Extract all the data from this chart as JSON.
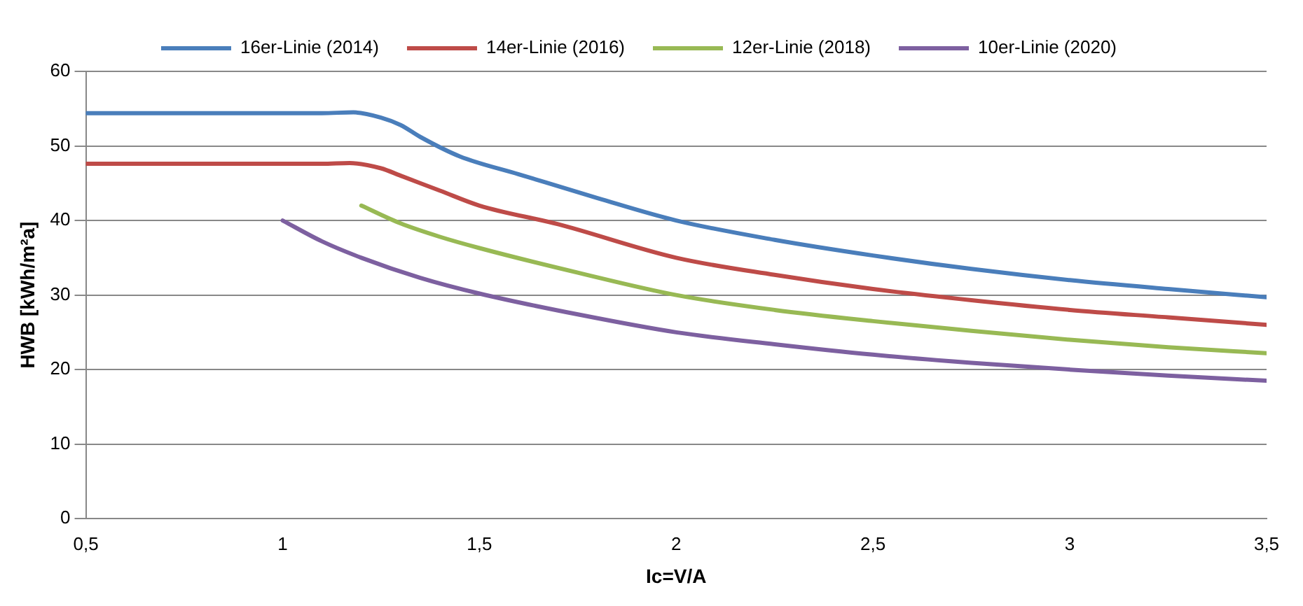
{
  "chart_data": {
    "type": "line",
    "xlabel": "Ic=V/A",
    "ylabel": "HWB [kWh/m²a]",
    "xlim": [
      0.5,
      3.5
    ],
    "xticks": [
      {
        "value": 0.5,
        "label": "0,5"
      },
      {
        "value": 1,
        "label": "1"
      },
      {
        "value": 1.5,
        "label": "1,5"
      },
      {
        "value": 2,
        "label": "2"
      },
      {
        "value": 2.5,
        "label": "2,5"
      },
      {
        "value": 3,
        "label": "3"
      },
      {
        "value": 3.5,
        "label": "3,5"
      }
    ],
    "ylim": [
      0,
      60
    ],
    "yticks": [
      0,
      10,
      20,
      30,
      40,
      50,
      60
    ],
    "grid": "y",
    "legend": "top",
    "marker": "none",
    "line_style": "solid",
    "series": [
      {
        "name": "16er-Linie (2014)",
        "color": "#4a7ebb",
        "x": [
          0.5,
          0.8,
          1.1,
          1.18,
          1.25,
          1.3,
          1.35,
          1.45,
          1.6,
          1.8,
          2.0,
          2.25,
          2.5,
          2.75,
          3.0,
          3.25,
          3.5
        ],
        "values": [
          54.4,
          54.4,
          54.4,
          54.5,
          53.8,
          52.8,
          51.2,
          48.6,
          46.2,
          43.0,
          40.0,
          37.4,
          35.3,
          33.5,
          32.0,
          30.8,
          29.7
        ]
      },
      {
        "name": "14er-Linie (2016)",
        "color": "#be4b48",
        "x": [
          0.5,
          0.8,
          1.1,
          1.17,
          1.25,
          1.3,
          1.4,
          1.5,
          1.7,
          2.0,
          2.25,
          2.5,
          2.75,
          3.0,
          3.25,
          3.5
        ],
        "values": [
          47.6,
          47.6,
          47.6,
          47.7,
          47.0,
          46.0,
          44.0,
          42.0,
          39.5,
          35.0,
          32.7,
          30.8,
          29.3,
          28.0,
          27.0,
          26.0
        ]
      },
      {
        "name": "12er-Linie (2018)",
        "color": "#98b954",
        "x": [
          1.2,
          1.3,
          1.4,
          1.5,
          1.75,
          2.0,
          2.25,
          2.5,
          2.75,
          3.0,
          3.25,
          3.5
        ],
        "values": [
          42.0,
          39.6,
          37.8,
          36.3,
          33.0,
          30.0,
          28.0,
          26.5,
          25.2,
          24.0,
          23.0,
          22.2
        ]
      },
      {
        "name": "10er-Linie (2020)",
        "color": "#7d60a0",
        "x": [
          1.0,
          1.1,
          1.2,
          1.35,
          1.5,
          1.75,
          2.0,
          2.25,
          2.5,
          2.75,
          3.0,
          3.25,
          3.5
        ],
        "values": [
          40.0,
          37.2,
          35.0,
          32.3,
          30.2,
          27.4,
          25.0,
          23.4,
          22.0,
          20.9,
          20.0,
          19.2,
          18.5
        ]
      }
    ]
  }
}
